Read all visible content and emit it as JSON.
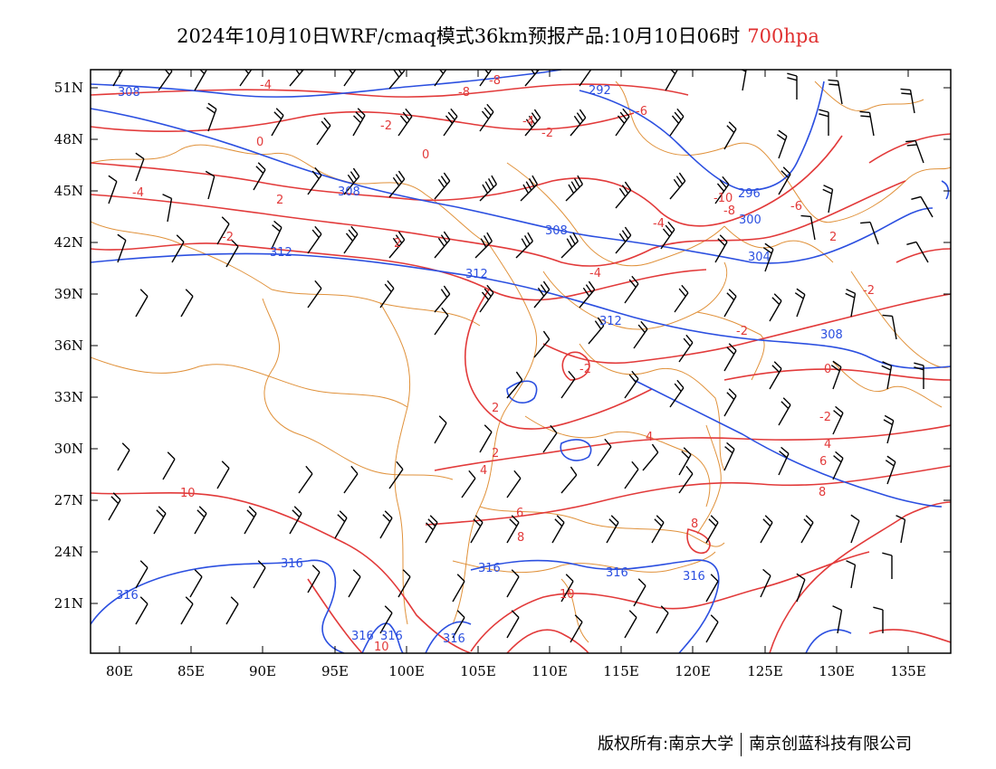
{
  "title": {
    "main": "2024年10月10日WRF/cmaq模式36km预报产品:10月10日06时",
    "level": "700hpa"
  },
  "colors": {
    "temperature": "#e23a3a",
    "geopotential": "#2b4fe0",
    "border": "#e0913a",
    "wind": "#000000"
  },
  "axes": {
    "lon_labels": [
      "80E",
      "85E",
      "90E",
      "95E",
      "100E",
      "105E",
      "110E",
      "115E",
      "120E",
      "125E",
      "130E",
      "135E"
    ],
    "lat_labels": [
      "51N",
      "48N",
      "45N",
      "42N",
      "39N",
      "36N",
      "33N",
      "30N",
      "27N",
      "24N",
      "21N"
    ]
  },
  "temperature_labels": [
    "-4",
    "-8",
    "-8",
    "-2",
    "-4",
    "-6",
    "-2",
    "0",
    "0",
    "-4",
    "2",
    "-10",
    "-6",
    "-8",
    "-4",
    "2",
    "-2",
    "2",
    "-4",
    "-2",
    "-2",
    "-2",
    "0",
    "2",
    "2",
    "-2",
    "4",
    "4",
    "6",
    "4",
    "6",
    "8",
    "8",
    "8",
    "10",
    "10",
    "10"
  ],
  "height_labels": [
    "308",
    "292",
    "308",
    "296",
    "300",
    "308",
    "304",
    "312",
    "312",
    "312",
    "308",
    "316",
    "316",
    "316",
    "316",
    "316",
    "316",
    "316",
    "316"
  ],
  "footer": {
    "left": "版权所有:南京大学",
    "right": "南京创蓝科技有限公司"
  }
}
